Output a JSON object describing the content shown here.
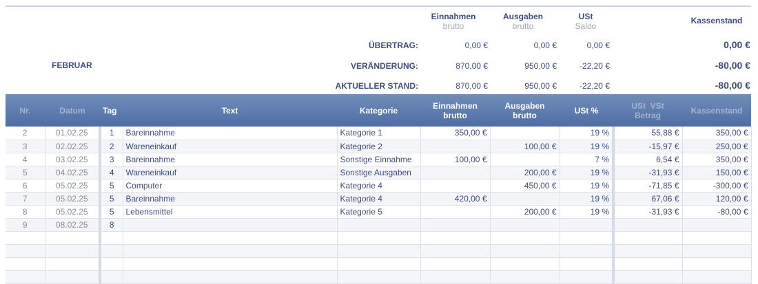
{
  "summary": {
    "month": "FEBRUAR",
    "headers": [
      {
        "title": "Einnahmen",
        "sub": "brutto"
      },
      {
        "title": "Ausgaben",
        "sub": "brutto"
      },
      {
        "title": "USt",
        "sub": "Saldo"
      },
      {
        "title": "Kassenstand",
        "sub": ""
      }
    ],
    "rows": [
      {
        "label": "ÜBERTRAG:",
        "einnahmen": "0,00 €",
        "ausgaben": "0,00 €",
        "ust": "0,00 €",
        "kassenstand": "0,00 €"
      },
      {
        "label": "VERÄNDERUNG:",
        "einnahmen": "870,00 €",
        "ausgaben": "950,00 €",
        "ust": "-22,20 €",
        "kassenstand": "-80,00 €"
      },
      {
        "label": "AKTUELLER STAND:",
        "einnahmen": "870,00 €",
        "ausgaben": "950,00 €",
        "ust": "-22,20 €",
        "kassenstand": "-80,00 €"
      }
    ]
  },
  "table": {
    "headers": {
      "nr": "Nr.",
      "datum": "Datum",
      "tag": "Tag",
      "text": "Text",
      "kategorie": "Kategorie",
      "einnahmen1": "Einnahmen",
      "einnahmen2": "brutto",
      "ausgaben1": "Ausgaben",
      "ausgaben2": "brutto",
      "ust": "USt %",
      "betrag1": "USt  VSt",
      "betrag2": "Betrag",
      "kassenstand": "Kassenstand"
    },
    "rows": [
      {
        "nr": "2",
        "datum": "01.02.25",
        "tag": "1",
        "text": "Bareinnahme",
        "kategorie": "Kategorie 1",
        "einnahmen": "350,00 €",
        "ausgaben": "",
        "ust": "19 %",
        "betrag": "55,88 €",
        "kassenstand": "350,00 €"
      },
      {
        "nr": "3",
        "datum": "02.02.25",
        "tag": "2",
        "text": "Wareneinkauf",
        "kategorie": "Kategorie 2",
        "einnahmen": "",
        "ausgaben": "100,00 €",
        "ust": "19 %",
        "betrag": "-15,97 €",
        "kassenstand": "250,00 €"
      },
      {
        "nr": "4",
        "datum": "03.02.25",
        "tag": "3",
        "text": "Bareinnahme",
        "kategorie": "Sonstige Einnahme",
        "einnahmen": "100,00 €",
        "ausgaben": "",
        "ust": "7 %",
        "betrag": "6,54 €",
        "kassenstand": "350,00 €"
      },
      {
        "nr": "5",
        "datum": "04.02.25",
        "tag": "4",
        "text": "Wareneinkauf",
        "kategorie": "Sonstige Ausgaben",
        "einnahmen": "",
        "ausgaben": "200,00 €",
        "ust": "19 %",
        "betrag": "-31,93 €",
        "kassenstand": "150,00 €"
      },
      {
        "nr": "6",
        "datum": "05.02.25",
        "tag": "5",
        "text": "Computer",
        "kategorie": "Kategorie 4",
        "einnahmen": "",
        "ausgaben": "450,00 €",
        "ust": "19 %",
        "betrag": "-71,85 €",
        "kassenstand": "-300,00 €"
      },
      {
        "nr": "7",
        "datum": "05.02.25",
        "tag": "5",
        "text": "Bareinnahme",
        "kategorie": "Kategorie 4",
        "einnahmen": "420,00 €",
        "ausgaben": "",
        "ust": "19 %",
        "betrag": "67,06 €",
        "kassenstand": "120,00 €"
      },
      {
        "nr": "8",
        "datum": "05.02.25",
        "tag": "5",
        "text": "Lebensmittel",
        "kategorie": "Kategorie 5",
        "einnahmen": "",
        "ausgaben": "200,00 €",
        "ust": "19 %",
        "betrag": "-31,93 €",
        "kassenstand": "-80,00 €"
      },
      {
        "nr": "9",
        "datum": "08.02.25",
        "tag": "8",
        "text": "",
        "kategorie": "",
        "einnahmen": "",
        "ausgaben": "",
        "ust": "",
        "betrag": "",
        "kassenstand": ""
      },
      {
        "nr": "",
        "datum": "",
        "tag": "",
        "text": "",
        "kategorie": "",
        "einnahmen": "",
        "ausgaben": "",
        "ust": "",
        "betrag": "",
        "kassenstand": ""
      },
      {
        "nr": "",
        "datum": "",
        "tag": "",
        "text": "",
        "kategorie": "",
        "einnahmen": "",
        "ausgaben": "",
        "ust": "",
        "betrag": "",
        "kassenstand": ""
      },
      {
        "nr": "",
        "datum": "",
        "tag": "",
        "text": "",
        "kategorie": "",
        "einnahmen": "",
        "ausgaben": "",
        "ust": "",
        "betrag": "",
        "kassenstand": ""
      },
      {
        "nr": "",
        "datum": "",
        "tag": "",
        "text": "",
        "kategorie": "",
        "einnahmen": "",
        "ausgaben": "",
        "ust": "",
        "betrag": "",
        "kassenstand": ""
      }
    ]
  }
}
